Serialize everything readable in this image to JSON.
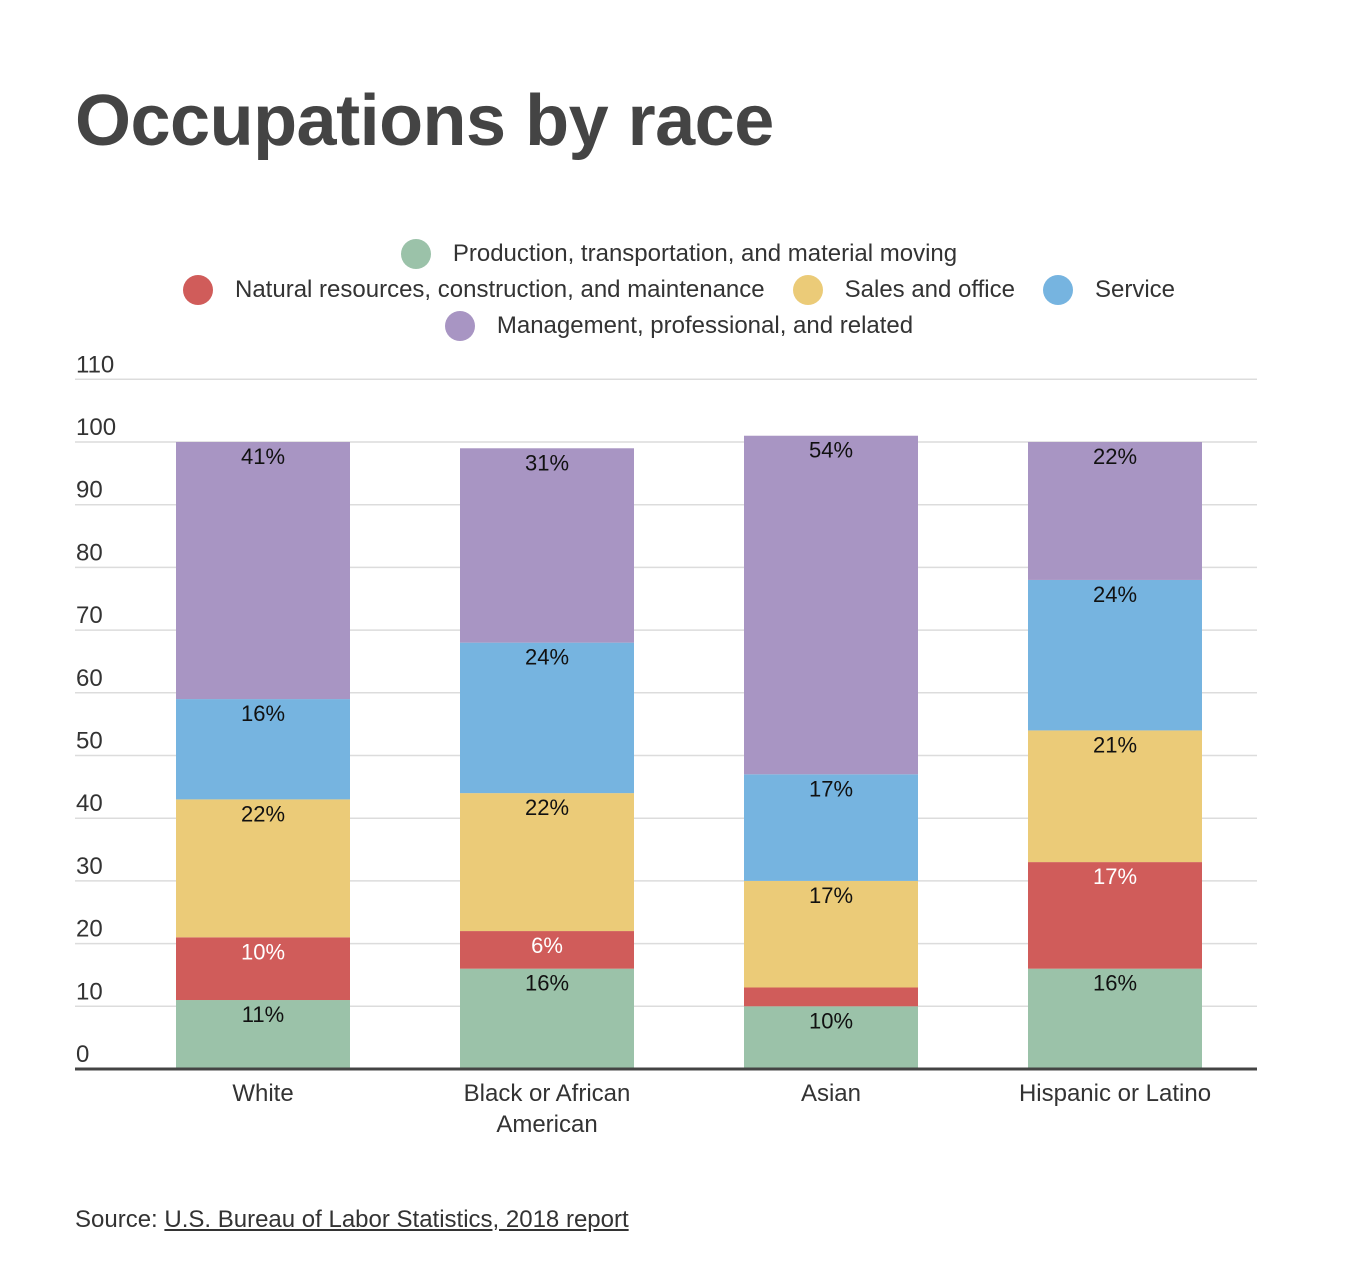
{
  "title": "Occupations by race",
  "legend": {
    "rows": [
      [
        0
      ],
      [
        1,
        2,
        3
      ],
      [
        4
      ]
    ]
  },
  "source": {
    "prefix": "Source: ",
    "link_text": "U.S. Bureau of Labor Statistics, 2018 report"
  },
  "chart_data": {
    "type": "bar",
    "stacked": true,
    "title": "Occupations by race",
    "categories": [
      "White",
      "Black or African American",
      "Asian",
      "Hispanic or Latino"
    ],
    "category_lines": [
      [
        "White"
      ],
      [
        "Black or African",
        "American"
      ],
      [
        "Asian"
      ],
      [
        "Hispanic or Latino"
      ]
    ],
    "series": [
      {
        "name": "Production, transportation, and material moving",
        "color": "#9bc2a9",
        "values": [
          11,
          16,
          10,
          16
        ],
        "labels": [
          "11%",
          "16%",
          "10%",
          "16%"
        ],
        "label_color": "#111111"
      },
      {
        "name": "Natural resources, construction, and maintenance",
        "color": "#d05c5a",
        "values": [
          10,
          6,
          3,
          17
        ],
        "labels": [
          "10%",
          "6%",
          "",
          "17%"
        ],
        "label_color": "#ffffff"
      },
      {
        "name": "Sales and office",
        "color": "#ebcb78",
        "values": [
          22,
          22,
          17,
          21
        ],
        "labels": [
          "22%",
          "22%",
          "17%",
          "21%"
        ],
        "label_color": "#111111"
      },
      {
        "name": "Service",
        "color": "#76b4e0",
        "values": [
          16,
          24,
          17,
          24
        ],
        "labels": [
          "16%",
          "24%",
          "17%",
          "24%"
        ],
        "label_color": "#111111"
      },
      {
        "name": "Management, professional, and related",
        "color": "#a895c3",
        "values": [
          41,
          31,
          54,
          22
        ],
        "labels": [
          "41%",
          "31%",
          "54%",
          "22%"
        ],
        "label_color": "#111111"
      }
    ],
    "ylim": [
      0,
      110
    ],
    "yticks": [
      0,
      10,
      20,
      30,
      40,
      50,
      60,
      70,
      80,
      90,
      100,
      110
    ],
    "grid": true,
    "legend_position": "top-center"
  }
}
